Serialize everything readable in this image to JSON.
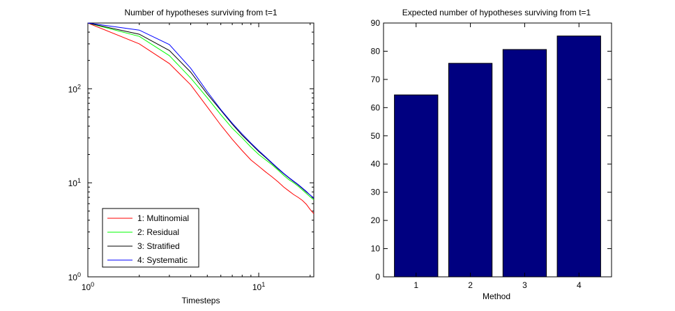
{
  "chart_data": [
    {
      "type": "line",
      "title": "Number of hypotheses surviving from t=1",
      "xlabel": "Timesteps",
      "ylabel": "",
      "xscale": "log",
      "yscale": "log",
      "xlim": [
        1,
        21
      ],
      "ylim": [
        1,
        500
      ],
      "grid": false,
      "legend_position": "bottom-left",
      "x_ticks": [
        {
          "value": 1,
          "base": "10",
          "exp": "0"
        },
        {
          "value": 10,
          "base": "10",
          "exp": "1"
        }
      ],
      "y_ticks": [
        {
          "value": 1,
          "base": "10",
          "exp": "0"
        },
        {
          "value": 10,
          "base": "10",
          "exp": "1"
        },
        {
          "value": 100,
          "base": "10",
          "exp": "2"
        }
      ],
      "series": [
        {
          "name": "1: Multinomial",
          "color": "#ff0000",
          "x": [
            1,
            2,
            3,
            4,
            5,
            6,
            7,
            8,
            9,
            10,
            11,
            12,
            13,
            14,
            15,
            16,
            17,
            18,
            19,
            20,
            21
          ],
          "y": [
            500,
            300,
            185,
            110,
            64,
            41,
            29,
            22,
            17.5,
            15,
            13,
            11.5,
            10.2,
            9,
            8.2,
            7.5,
            7,
            6.5,
            5.9,
            5.2,
            4.7
          ]
        },
        {
          "name": "2: Residual",
          "color": "#00ff00",
          "x": [
            1,
            2,
            3,
            4,
            5,
            6,
            7,
            8,
            9,
            10,
            11,
            12,
            13,
            14,
            15,
            16,
            17,
            18,
            19,
            20,
            21
          ],
          "y": [
            500,
            360,
            225,
            130,
            80,
            53,
            38,
            30,
            24,
            20,
            17.5,
            15.5,
            13.6,
            12,
            10.8,
            10,
            9.2,
            8.4,
            7.7,
            7.1,
            6.6
          ]
        },
        {
          "name": "3: Stratified",
          "color": "#000000",
          "x": [
            1,
            2,
            3,
            4,
            5,
            6,
            7,
            8,
            9,
            10,
            11,
            12,
            13,
            14,
            15,
            16,
            17,
            18,
            19,
            20,
            21
          ],
          "y": [
            500,
            380,
            255,
            150,
            88,
            59,
            42,
            32,
            26,
            21.5,
            18.5,
            16,
            14,
            12.5,
            11.3,
            10.3,
            9.5,
            8.7,
            8,
            7.4,
            6.8
          ]
        },
        {
          "name": "4: Systematic",
          "color": "#0000ff",
          "x": [
            1,
            2,
            3,
            4,
            5,
            6,
            7,
            8,
            9,
            10,
            11,
            12,
            13,
            14,
            15,
            16,
            17,
            18,
            19,
            20,
            21
          ],
          "y": [
            500,
            420,
            295,
            165,
            93,
            60,
            43,
            33,
            26.5,
            22,
            18.8,
            16.2,
            14.2,
            12.6,
            11.4,
            10.4,
            9.6,
            8.8,
            8.1,
            7.4,
            6.9
          ]
        }
      ]
    },
    {
      "type": "bar",
      "title": "Expected number of hypotheses surviving from t=1",
      "xlabel": "Method",
      "ylabel": "",
      "categories": [
        "1",
        "2",
        "3",
        "4"
      ],
      "values": [
        64.5,
        75.7,
        80.6,
        85.4
      ],
      "ylim": [
        0,
        90
      ],
      "y_ticks": [
        0,
        10,
        20,
        30,
        40,
        50,
        60,
        70,
        80,
        90
      ],
      "xlim": [
        0.4,
        4.6
      ],
      "grid": false,
      "bar_color": "#000080"
    }
  ]
}
